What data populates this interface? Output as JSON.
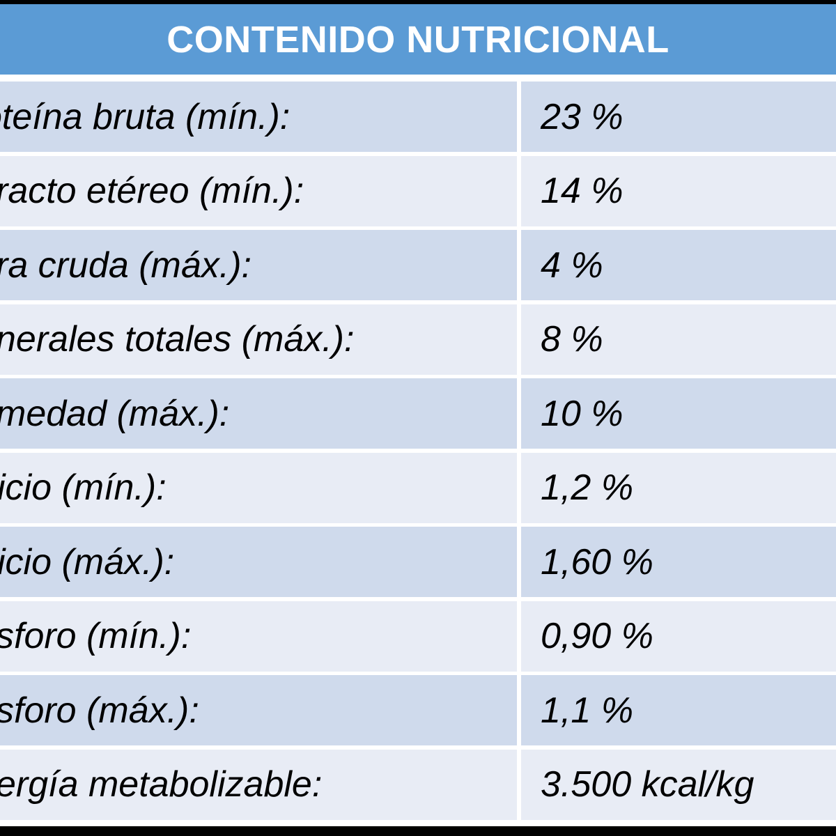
{
  "header": {
    "title": "CONTENIDO NUTRICIONAL"
  },
  "rows": [
    {
      "label": "oteína bruta (mín.):",
      "value": "23 %"
    },
    {
      "label": "racto etéreo (mín.):",
      "value": "14 %"
    },
    {
      "label": "ra cruda (máx.):",
      "value": "4 %"
    },
    {
      "label": "nerales totales (máx.):",
      "value": "8 %"
    },
    {
      "label": "medad (máx.):",
      "value": "10 %"
    },
    {
      "label": "icio (mín.):",
      "value": "1,2 %"
    },
    {
      "label": "icio (máx.):",
      "value": "1,60 %"
    },
    {
      "label": "sforo (mín.):",
      "value": "0,90 %"
    },
    {
      "label": "sforo (máx.):",
      "value": "1,1 %"
    },
    {
      "label": "ergía metabolizable:",
      "value": "3.500 kcal/kg"
    }
  ],
  "colors": {
    "header_bg": "#5b9bd5",
    "row_dark": "#cfdaec",
    "row_light": "#e8ecf5",
    "border": "#ffffff",
    "frame": "#000000"
  }
}
